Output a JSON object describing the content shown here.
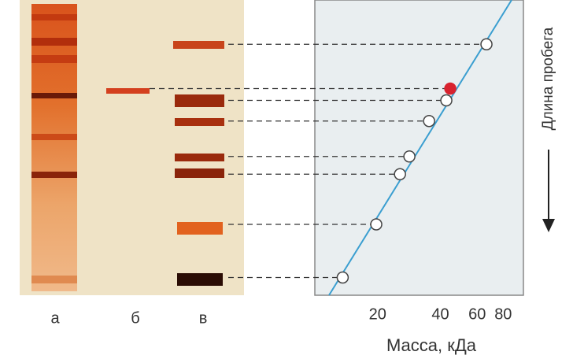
{
  "chart_data": {
    "type": "scatter",
    "lanes": [
      "а",
      "б",
      "в"
    ],
    "xlabel": "Масса, кДа",
    "ylabel": "Длина пробега",
    "xscale": "log",
    "xlim": [
      10,
      100
    ],
    "xticks": [
      20,
      40,
      60,
      80
    ],
    "ylim": [
      0,
      1
    ],
    "series": [
      {
        "color": "#ffffff",
        "x": [
          66.5,
          42.7,
          35.3,
          28.4,
          25.6,
          19.7,
          13.6
        ],
        "values": [
          0.15,
          0.34,
          0.41,
          0.53,
          0.59,
          0.76,
          0.94
        ]
      },
      {
        "color": "#d8222e",
        "x": [
          44.6
        ],
        "values": [
          0.3
        ]
      }
    ],
    "fit_color": "#3a9ed0"
  }
}
